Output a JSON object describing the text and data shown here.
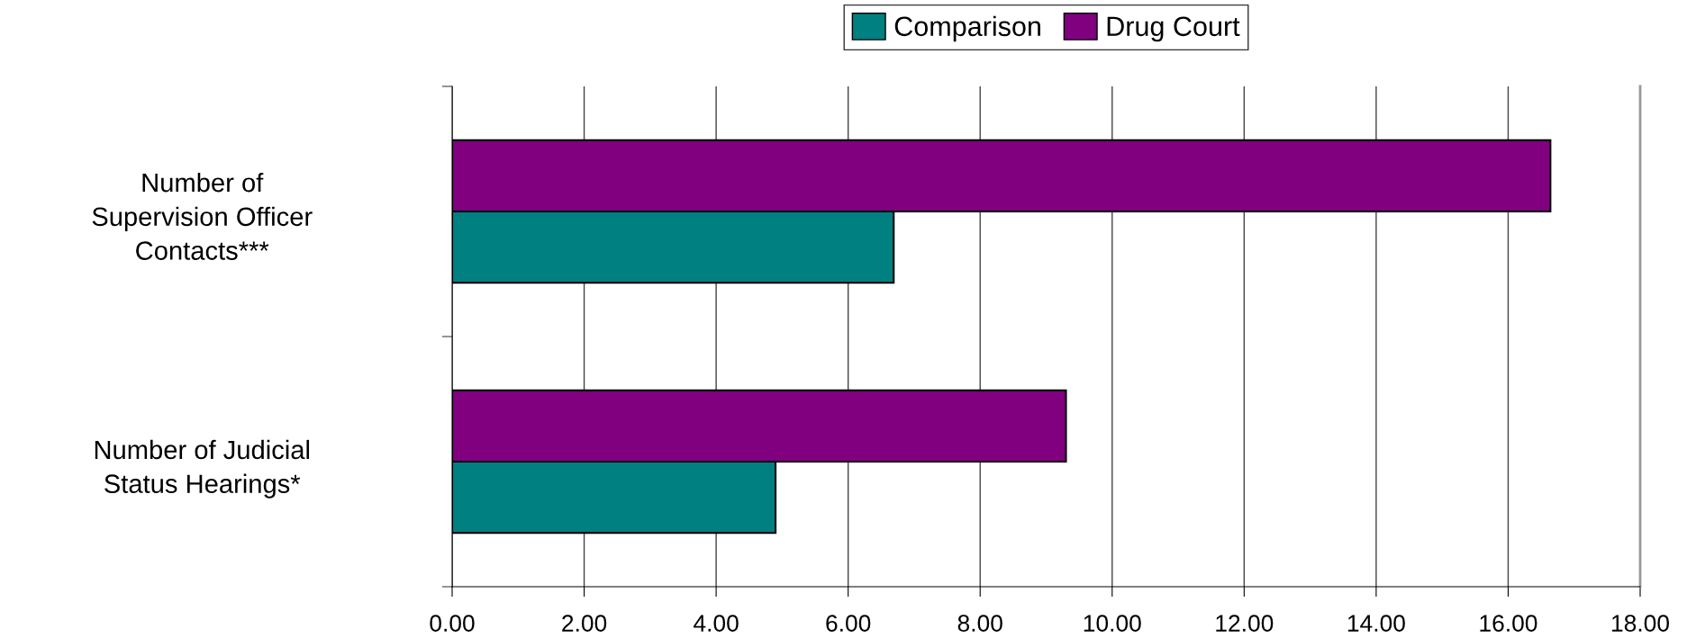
{
  "chart_data": {
    "type": "bar",
    "orientation": "horizontal",
    "categories": [
      "Number of\nSupervision Officer\nContacts***",
      "Number of Judicial\nStatus Hearings*"
    ],
    "series": [
      {
        "name": "Comparison",
        "color": "#008080",
        "values": [
          6.69,
          4.9
        ]
      },
      {
        "name": "Drug Court",
        "color": "#800080",
        "values": [
          16.64,
          9.3
        ]
      }
    ],
    "xlim": [
      0,
      18
    ],
    "xticks": [
      {
        "value": 0,
        "label": "0.00"
      },
      {
        "value": 2,
        "label": "2.00"
      },
      {
        "value": 4,
        "label": "4.00"
      },
      {
        "value": 6,
        "label": "6.00"
      },
      {
        "value": 8,
        "label": "8.00"
      },
      {
        "value": 10,
        "label": "10.00"
      },
      {
        "value": 12,
        "label": "12.00"
      },
      {
        "value": 14,
        "label": "14.00"
      },
      {
        "value": 16,
        "label": "16.00"
      },
      {
        "value": 18,
        "label": "18.00"
      }
    ],
    "grid": "x",
    "legend": "top"
  }
}
